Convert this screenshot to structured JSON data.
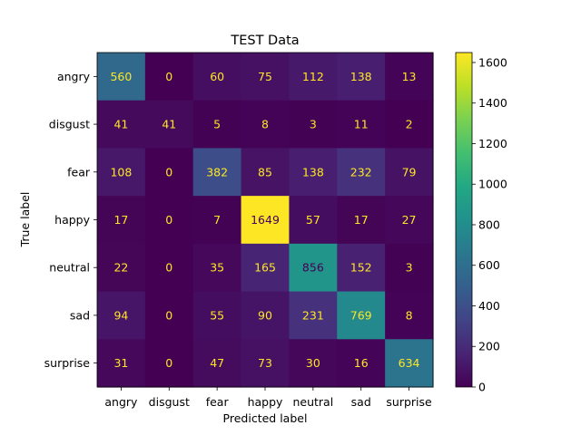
{
  "chart_data": {
    "type": "heatmap",
    "title": "TEST Data",
    "xlabel": "Predicted label",
    "ylabel": "True label",
    "x_categories": [
      "angry",
      "disgust",
      "fear",
      "happy",
      "neutral",
      "sad",
      "surprise"
    ],
    "y_categories": [
      "angry",
      "disgust",
      "fear",
      "happy",
      "neutral",
      "sad",
      "surprise"
    ],
    "values": [
      [
        560,
        0,
        60,
        75,
        112,
        138,
        13
      ],
      [
        41,
        41,
        5,
        8,
        3,
        11,
        2
      ],
      [
        108,
        0,
        382,
        85,
        138,
        232,
        79
      ],
      [
        17,
        0,
        7,
        1649,
        57,
        17,
        27
      ],
      [
        22,
        0,
        35,
        165,
        856,
        152,
        3
      ],
      [
        94,
        0,
        55,
        90,
        231,
        769,
        8
      ],
      [
        31,
        0,
        47,
        73,
        30,
        16,
        634
      ]
    ],
    "colormap": "viridis",
    "color_range": [
      0,
      1649
    ],
    "colorbar_ticks": [
      0,
      200,
      400,
      600,
      800,
      1000,
      1200,
      1400,
      1600
    ],
    "colorbar_tick_labels": [
      "0",
      "200",
      "400",
      "600",
      "800",
      "1000",
      "1200",
      "1400",
      "1600"
    ],
    "text_color_light": "#fde725",
    "text_color_dark": "#440154",
    "grid": false
  }
}
